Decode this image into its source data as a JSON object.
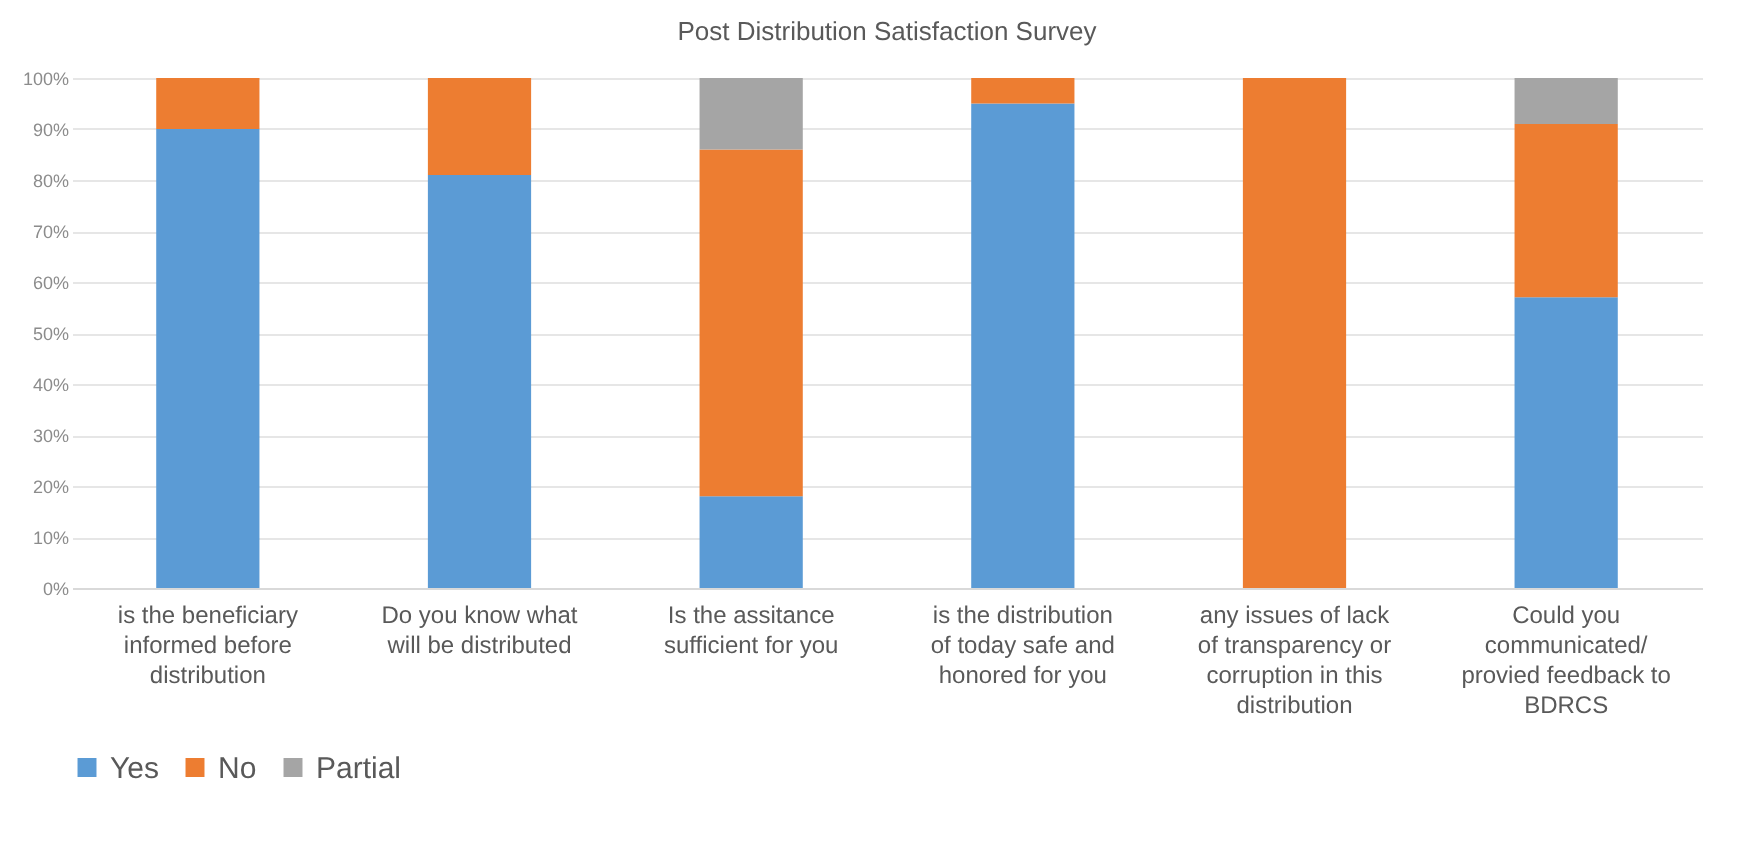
{
  "chart_data": {
    "type": "bar",
    "title": "Post Distribution Satisfaction Survey",
    "categories": [
      "is the beneficiary informed before distribution",
      "Do you know what will be distributed",
      "Is the assitance sufficient for you",
      "is the distribution of today safe and honored for you",
      "any issues of lack of transparency or corruption in this distribution",
      "Could you communicated/ provied feedback to BDRCS"
    ],
    "series": [
      {
        "name": "Yes",
        "color": "#5b9bd5",
        "values": [
          90,
          81,
          18,
          95,
          0,
          57
        ]
      },
      {
        "name": "No",
        "color": "#ed7d31",
        "values": [
          10,
          19,
          68,
          5,
          100,
          34
        ]
      },
      {
        "name": "Partial",
        "color": "#a5a5a5",
        "values": [
          0,
          0,
          14,
          0,
          0,
          9
        ]
      }
    ],
    "stacked": true,
    "ylim": [
      0,
      100
    ],
    "yticks": [
      {
        "value": 0,
        "label": "0%"
      },
      {
        "value": 10,
        "label": "10%"
      },
      {
        "value": 20,
        "label": "20%"
      },
      {
        "value": 30,
        "label": "30%"
      },
      {
        "value": 40,
        "label": "40%"
      },
      {
        "value": 50,
        "label": "50%"
      },
      {
        "value": 60,
        "label": "60%"
      },
      {
        "value": 70,
        "label": "70%"
      },
      {
        "value": 80,
        "label": "80%"
      },
      {
        "value": 90,
        "label": "90%"
      },
      {
        "value": 100,
        "label": "100%"
      }
    ],
    "grid": "y",
    "legend": "bottom"
  }
}
